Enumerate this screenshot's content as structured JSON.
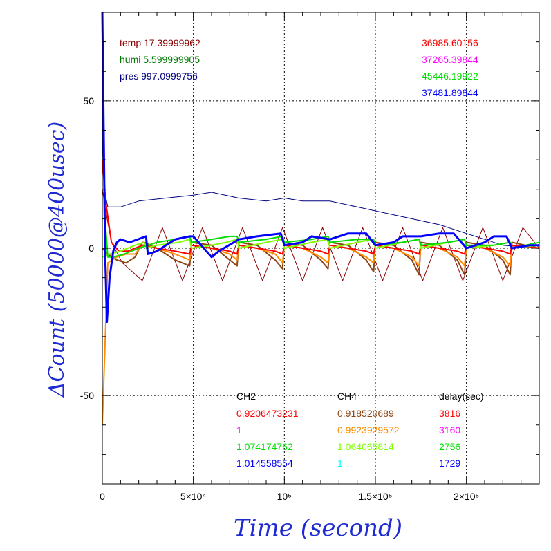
{
  "chart_data": {
    "type": "line",
    "title": "",
    "xlabel": "Time (second)",
    "ylabel": "ΔCount (50000@400usec)",
    "xlim": [
      0,
      240000
    ],
    "ylim": [
      -80,
      80
    ],
    "x_ticks": [
      {
        "value": 0,
        "label": "0"
      },
      {
        "value": 50000,
        "label": "5×10⁴"
      },
      {
        "value": 100000,
        "label": "10⁵"
      },
      {
        "value": 150000,
        "label": "1.5×10⁵"
      },
      {
        "value": 200000,
        "label": "2×10⁵"
      }
    ],
    "y_ticks": [
      {
        "value": 50,
        "label": "50"
      },
      {
        "value": 0,
        "label": "0"
      },
      {
        "value": -50,
        "label": "-50"
      }
    ],
    "grid": true,
    "env": [
      {
        "text": "temp 17.39999962",
        "color": "#8b0000"
      },
      {
        "text": "humi 5.599999905",
        "color": "#007a00"
      },
      {
        "text": "pres 997.0999756",
        "color": "#000080"
      }
    ],
    "rates": [
      {
        "text": "36985.60156",
        "color": "#ff0000"
      },
      {
        "text": "37265.39844",
        "color": "#ff00ff"
      },
      {
        "text": "45446.19922",
        "color": "#00dd00"
      },
      {
        "text": "37481.89844",
        "color": "#0000ff"
      }
    ],
    "table": {
      "headers": [
        "CH2",
        "CH4",
        "delay(sec)"
      ],
      "rows": [
        {
          "ch2": "0.9206473231",
          "ch2_color": "#ff0000",
          "ch4": "0.918520689",
          "ch4_color": "#8b4513",
          "delay": "3816",
          "delay_color": "#ff0000"
        },
        {
          "ch2": "1",
          "ch2_color": "#ff00ff",
          "ch4": "0.9923929572",
          "ch4_color": "#ff8c00",
          "delay": "3160",
          "delay_color": "#ff00ff"
        },
        {
          "ch2": "1.074174762",
          "ch2_color": "#00dd00",
          "ch4": "1.064065814",
          "ch4_color": "#7fff00",
          "delay": "2756",
          "delay_color": "#00dd00"
        },
        {
          "ch2": "1.014558554",
          "ch2_color": "#0000ff",
          "ch4": "1",
          "ch4_color": "#00ffff",
          "delay": "1729",
          "delay_color": "#0000ff"
        }
      ]
    },
    "series": [
      {
        "color": "#000080",
        "width": 1,
        "x": [
          0,
          1000,
          3000,
          10000,
          20000,
          35000,
          50000,
          60000,
          75000,
          90000,
          100000,
          110000,
          125000,
          140000,
          155000,
          170000,
          185000,
          200000,
          210000,
          220000,
          240000
        ],
        "y": [
          40,
          20,
          14,
          14,
          16,
          17,
          18,
          19,
          17,
          16,
          17,
          16,
          16,
          14,
          12,
          10,
          8,
          5,
          3,
          1,
          0
        ]
      },
      {
        "color": "#8b0000",
        "width": 1,
        "x": [
          0,
          2000,
          5000,
          11000,
          22000,
          33000,
          44000,
          55000,
          66000,
          77000,
          88000,
          99000,
          110000,
          121000,
          132000,
          143000,
          154000,
          165000,
          176000,
          187000,
          198000,
          209000,
          220000,
          231000,
          240000
        ],
        "y": [
          20,
          12,
          2,
          -5,
          -11,
          7,
          -11,
          7,
          -11,
          7,
          -11,
          7,
          -11,
          7,
          -11,
          7,
          -11,
          7,
          -11,
          7,
          -11,
          7,
          -11,
          7,
          0
        ]
      },
      {
        "color": "#8b4513",
        "width": 2,
        "x": [
          0,
          3000,
          8000,
          13000,
          18000,
          22000,
          23000,
          30000,
          40000,
          48000,
          49000,
          60000,
          70000,
          74000,
          75000,
          85000,
          95000,
          99000,
          100000,
          110000,
          120000,
          124000,
          125000,
          135000,
          145000,
          149000,
          150000,
          160000,
          170000,
          174000,
          175000,
          185000,
          195000,
          199000,
          200000,
          210000,
          220000,
          224000,
          225000,
          240000
        ],
        "y": [
          0,
          -2,
          -4,
          -5,
          -3,
          2,
          2,
          0,
          -4,
          -6,
          2,
          1,
          -4,
          -6,
          2,
          1,
          -4,
          -7,
          2,
          1,
          -4,
          -7,
          2,
          1,
          -4,
          -8,
          2,
          1,
          -4,
          -9,
          2,
          1,
          -4,
          -9,
          2,
          1,
          -4,
          -9,
          2,
          0
        ]
      },
      {
        "color": "#ff8c00",
        "width": 2,
        "x": [
          0,
          3000,
          8000,
          13000,
          18000,
          22000,
          23000,
          30000,
          40000,
          48000,
          49000,
          60000,
          70000,
          74000,
          75000,
          85000,
          95000,
          99000,
          100000,
          110000,
          120000,
          124000,
          125000,
          135000,
          145000,
          149000,
          150000,
          160000,
          170000,
          174000,
          175000,
          185000,
          195000,
          199000,
          200000,
          210000,
          220000,
          224000,
          225000,
          240000
        ],
        "y": [
          -60,
          -5,
          -3,
          -2,
          -2,
          1,
          1,
          0,
          -2,
          -4,
          1,
          0,
          -2,
          -4,
          1,
          0,
          -2,
          -5,
          1,
          0,
          -3,
          -5,
          1,
          0,
          -3,
          -5,
          1,
          0,
          -3,
          -6,
          1,
          0,
          -3,
          -6,
          1,
          0,
          -3,
          -6,
          1,
          0
        ]
      },
      {
        "color": "#ff0000",
        "width": 2,
        "x": [
          0,
          2000,
          5000,
          9000,
          14000,
          22000,
          23000,
          30000,
          40000,
          48000,
          49000,
          60000,
          70000,
          74000,
          75000,
          85000,
          95000,
          99000,
          100000,
          110000,
          120000,
          124000,
          125000,
          135000,
          145000,
          149000,
          150000,
          160000,
          170000,
          174000,
          175000,
          185000,
          195000,
          199000,
          200000,
          210000,
          220000,
          224000,
          225000,
          240000
        ],
        "y": [
          30,
          15,
          2,
          -1,
          -1,
          1,
          1,
          0,
          -1,
          -2,
          1,
          0,
          -1,
          -2,
          1,
          0,
          -1,
          -2,
          1,
          0,
          -1,
          -2,
          1,
          0,
          -1,
          -2,
          1,
          0,
          -1,
          -2,
          1,
          0,
          -1,
          -2,
          1,
          0,
          -1,
          -2,
          1,
          0
        ]
      },
      {
        "color": "#7fff00",
        "width": 2,
        "x": [
          0,
          4000,
          10000,
          18000,
          23000,
          24000,
          30000,
          42000,
          48000,
          49000,
          60000,
          68000,
          74000,
          75000,
          90000,
          99000,
          100000,
          115000,
          124000,
          125000,
          140000,
          149000,
          150000,
          165000,
          174000,
          175000,
          190000,
          199000,
          200000,
          215000,
          224000,
          225000,
          240000
        ],
        "y": [
          -3,
          -2,
          -1,
          1,
          2,
          0,
          1,
          2,
          3,
          0,
          1,
          2,
          3,
          0,
          2,
          3,
          0,
          2,
          3,
          0,
          2,
          3,
          0,
          2,
          3,
          0,
          2,
          3,
          0,
          1,
          2,
          0,
          1
        ]
      },
      {
        "color": "#00dd00",
        "width": 2,
        "x": [
          0,
          1500,
          3000,
          6000,
          12000,
          20000,
          25000,
          30000,
          40000,
          48000,
          49000,
          60000,
          70000,
          74000,
          75000,
          90000,
          99000,
          100000,
          115000,
          124000,
          125000,
          140000,
          149000,
          150000,
          165000,
          174000,
          175000,
          190000,
          199000,
          200000,
          215000,
          224000,
          225000,
          240000
        ],
        "y": [
          65,
          10,
          -3,
          -3,
          -2,
          0,
          1,
          2,
          3,
          4,
          2,
          3,
          4,
          4,
          2,
          3,
          4,
          2,
          3,
          4,
          2,
          3,
          3,
          1,
          2,
          3,
          1,
          2,
          3,
          1,
          1,
          2,
          0,
          2
        ]
      },
      {
        "color": "#0000ff",
        "width": 3,
        "x": [
          0,
          1500,
          2500,
          4000,
          6000,
          8000,
          10000,
          15000,
          24000,
          25000,
          30000,
          40000,
          48000,
          50000,
          60000,
          64000,
          75000,
          85000,
          98000,
          100000,
          110000,
          115000,
          125000,
          135000,
          145000,
          150000,
          160000,
          165000,
          175000,
          185000,
          193000,
          200000,
          210000,
          215000,
          222000,
          225000,
          235000,
          240000
        ],
        "y": [
          80,
          0,
          -25,
          -10,
          -1,
          2,
          3,
          2,
          4,
          -2,
          -1,
          3,
          4,
          4,
          -3,
          -1,
          3,
          4,
          5,
          1,
          2,
          4,
          3,
          5,
          5,
          1,
          2,
          4,
          4,
          5,
          5,
          0,
          2,
          4,
          4,
          0,
          1,
          1
        ]
      }
    ]
  }
}
